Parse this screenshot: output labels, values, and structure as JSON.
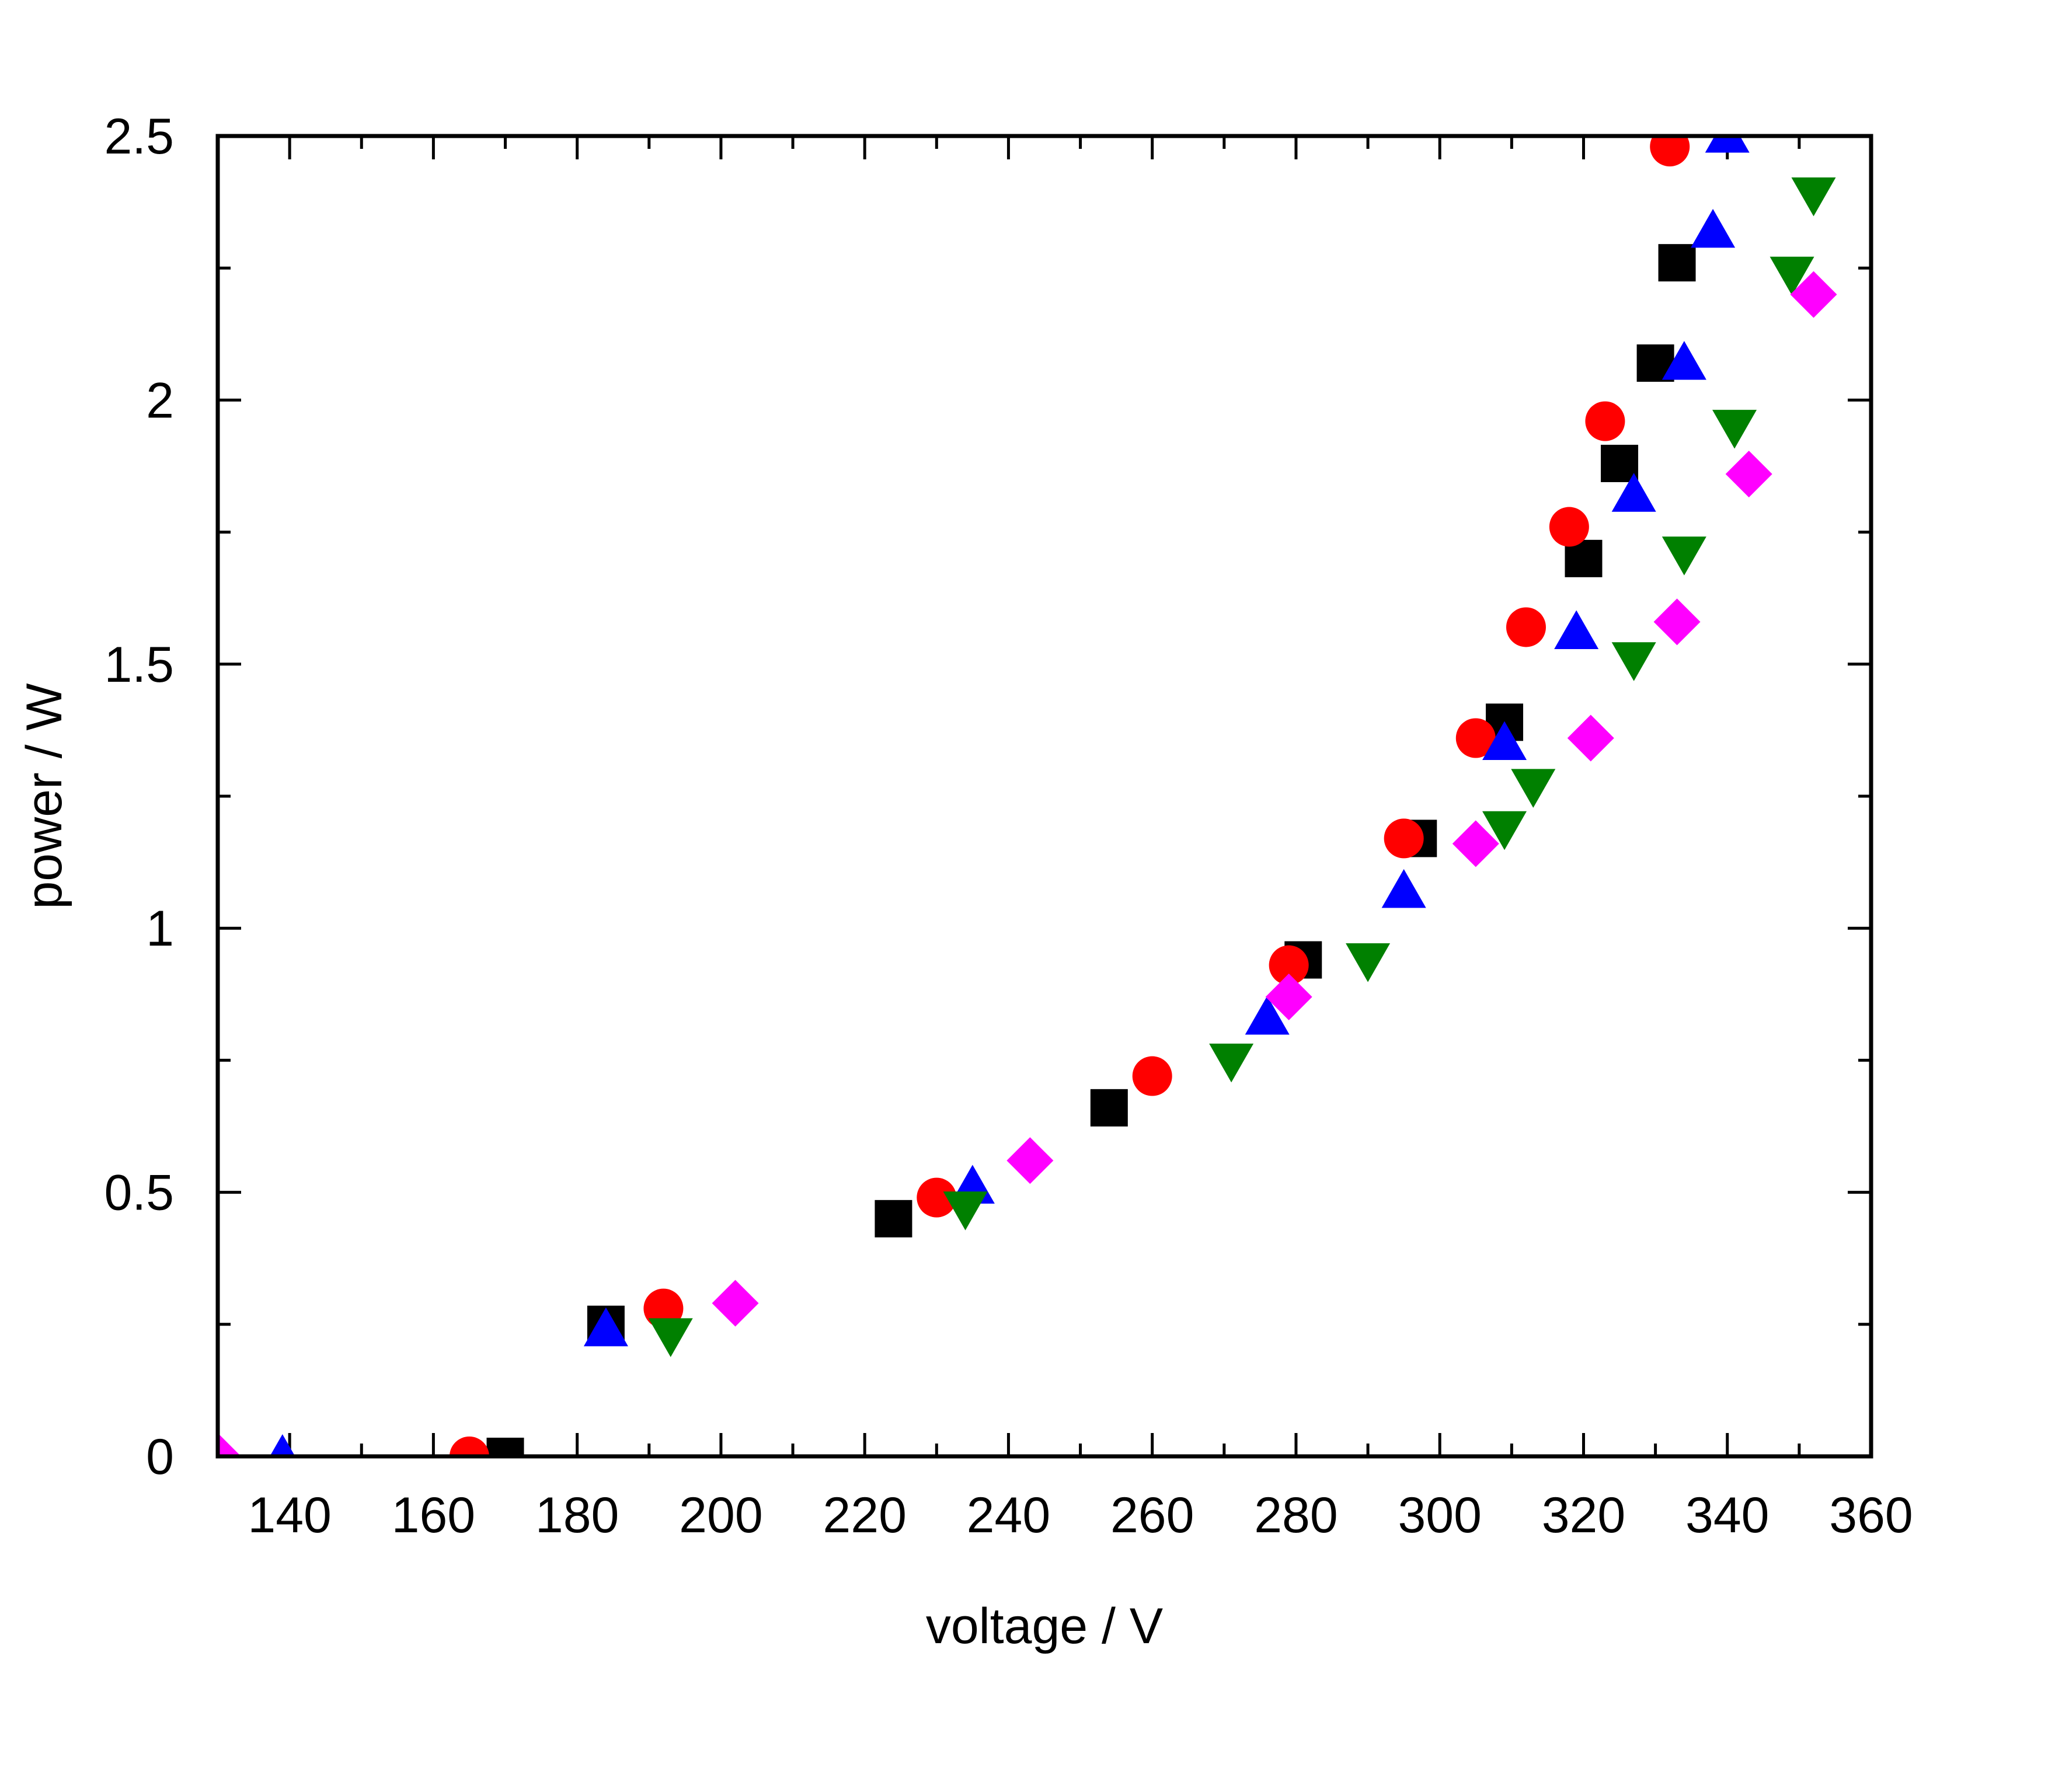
{
  "chart_data": {
    "type": "scatter",
    "title": "",
    "xlabel": "voltage / V",
    "ylabel": "power / W",
    "xlim": [
      130,
      360
    ],
    "ylim": [
      0,
      2.5
    ],
    "x_ticks": [
      140,
      160,
      180,
      200,
      220,
      240,
      260,
      280,
      300,
      320,
      340,
      360
    ],
    "x_tick_labels": [
      "140",
      "160",
      "180",
      "200",
      "220",
      "240",
      "260",
      "280",
      "300",
      "320",
      "340",
      "360"
    ],
    "y_ticks": [
      0,
      0.5,
      1,
      1.5,
      2,
      2.5
    ],
    "y_tick_labels": [
      "0",
      "0.5",
      "1",
      "1.5",
      "2",
      "2.5"
    ],
    "grid": false,
    "legend": false,
    "series": [
      {
        "marker": "square",
        "color": "#000000",
        "x": [
          170,
          184,
          224,
          254,
          281,
          297,
          309,
          320,
          325,
          330,
          333
        ],
        "y": [
          0.0,
          0.25,
          0.45,
          0.66,
          0.94,
          1.17,
          1.39,
          1.7,
          1.88,
          2.07,
          2.26
        ]
      },
      {
        "marker": "circle",
        "color": "#ff0000",
        "x": [
          165,
          192,
          230,
          260,
          279,
          295,
          305,
          312,
          318,
          323,
          332
        ],
        "y": [
          0.0,
          0.28,
          0.49,
          0.72,
          0.93,
          1.17,
          1.36,
          1.57,
          1.76,
          1.96,
          2.48
        ]
      },
      {
        "marker": "triangle-up",
        "color": "#0000ff",
        "x": [
          139,
          184,
          235,
          276,
          295,
          309,
          319,
          327,
          334,
          338,
          340
        ],
        "y": [
          0.0,
          0.24,
          0.51,
          0.83,
          1.07,
          1.35,
          1.56,
          1.82,
          2.07,
          2.32,
          2.5
        ]
      },
      {
        "marker": "triangle-down",
        "color": "#008000",
        "x": [
          193,
          234,
          271,
          290,
          309,
          313,
          327,
          334,
          341,
          349,
          352
        ],
        "y": [
          0.23,
          0.47,
          0.75,
          0.94,
          1.19,
          1.27,
          1.51,
          1.71,
          1.95,
          2.24,
          2.39
        ]
      },
      {
        "marker": "diamond",
        "color": "#ff00ff",
        "x": [
          130,
          202,
          243,
          279,
          305,
          321,
          333,
          343,
          352
        ],
        "y": [
          0.0,
          0.29,
          0.56,
          0.87,
          1.16,
          1.36,
          1.58,
          1.86,
          2.2
        ]
      }
    ]
  }
}
